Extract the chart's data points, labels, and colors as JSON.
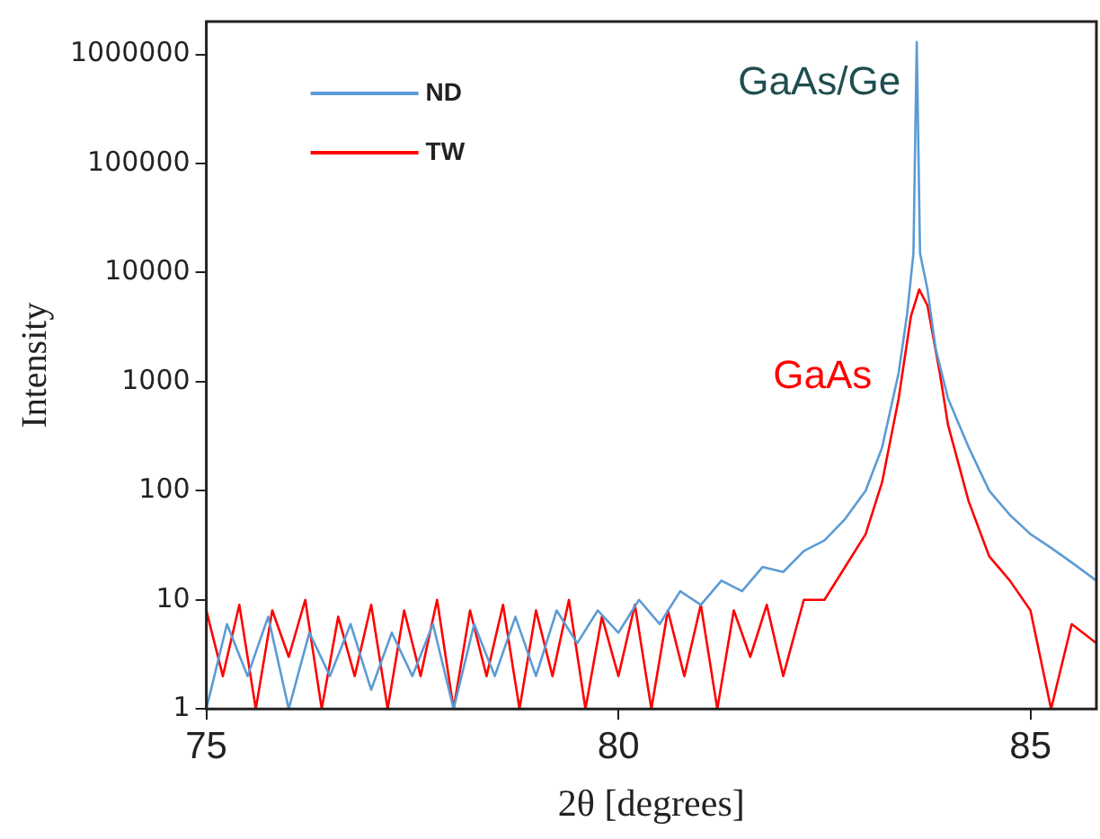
{
  "chart_data": {
    "type": "line",
    "xlabel": "2θ [degrees]",
    "ylabel": "Intensity",
    "xlim": [
      75,
      85.8
    ],
    "xticks": [
      75,
      80,
      85
    ],
    "ylim": [
      1,
      2000000
    ],
    "yticks": [
      1,
      10,
      100,
      1000,
      10000,
      100000,
      1000000
    ],
    "log": "y",
    "grid": false,
    "legend": "top left",
    "marker": "none",
    "line_style": "solid",
    "series": [
      {
        "name": "ND",
        "color": "#5b9bd5",
        "x": [
          75,
          75.25,
          75.5,
          75.75,
          76,
          76.25,
          76.5,
          76.75,
          77,
          77.25,
          77.5,
          77.75,
          78,
          78.25,
          78.5,
          78.75,
          79,
          79.25,
          79.5,
          79.75,
          80,
          80.25,
          80.5,
          80.75,
          81,
          81.25,
          81.5,
          81.75,
          82,
          82.25,
          82.5,
          82.75,
          83,
          83.2,
          83.4,
          83.5,
          83.58,
          83.62,
          83.66,
          83.75,
          83.85,
          84,
          84.25,
          84.5,
          84.75,
          85,
          85.25,
          85.5,
          85.8
        ],
        "values": [
          1,
          6,
          2,
          7,
          1,
          5,
          2,
          6,
          1.5,
          5,
          2,
          6,
          1,
          6,
          2,
          7,
          2,
          8,
          4,
          8,
          5,
          10,
          6,
          12,
          9,
          15,
          12,
          20,
          18,
          28,
          35,
          55,
          100,
          250,
          1200,
          4000,
          15000,
          1300000,
          15000,
          7000,
          2000,
          700,
          250,
          100,
          60,
          40,
          30,
          22,
          15
        ]
      },
      {
        "name": "TW",
        "color": "#ff0000",
        "x": [
          75,
          75.2,
          75.4,
          75.6,
          75.8,
          76,
          76.2,
          76.4,
          76.6,
          76.8,
          77,
          77.2,
          77.4,
          77.6,
          77.8,
          78,
          78.2,
          78.4,
          78.6,
          78.8,
          79,
          79.2,
          79.4,
          79.6,
          79.8,
          80,
          80.2,
          80.4,
          80.6,
          80.8,
          81,
          81.2,
          81.4,
          81.6,
          81.8,
          82,
          82.25,
          82.5,
          82.75,
          83,
          83.2,
          83.4,
          83.55,
          83.65,
          83.75,
          83.9,
          84,
          84.25,
          84.5,
          84.75,
          85,
          85.25,
          85.5,
          85.8
        ],
        "values": [
          8,
          2,
          9,
          1,
          8,
          3,
          10,
          1,
          7,
          2,
          9,
          1,
          8,
          2,
          10,
          1,
          8,
          2,
          9,
          1,
          8,
          2,
          10,
          1,
          7,
          2,
          9,
          1,
          8,
          2,
          9,
          1,
          8,
          3,
          9,
          2,
          10,
          10,
          20,
          40,
          120,
          700,
          4000,
          7000,
          5000,
          1200,
          400,
          80,
          25,
          15,
          8,
          1,
          6,
          4
        ]
      }
    ],
    "annotations": [
      {
        "text": "GaAs/Ge",
        "x": 83.6,
        "y": 1000000
      },
      {
        "text": "GaAs",
        "x": 83.6,
        "y": 2000
      }
    ]
  }
}
